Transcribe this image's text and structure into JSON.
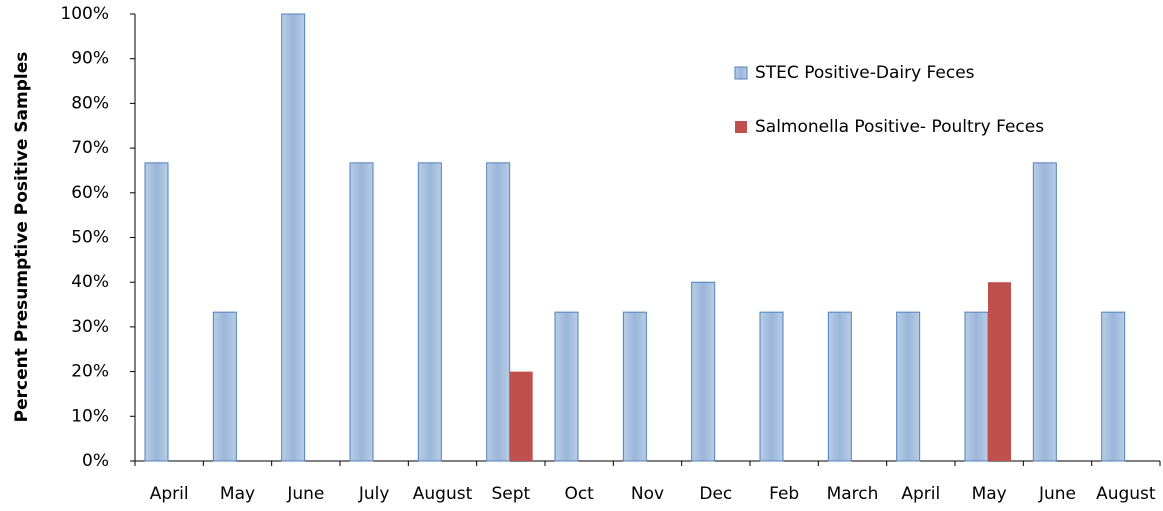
{
  "chart_data": {
    "type": "bar",
    "y_label": "Percent Presumptive Positive Samples",
    "categories": [
      "April",
      "May",
      "June",
      "July",
      "August",
      "Sept",
      "Oct",
      "Nov",
      "Dec",
      "Feb",
      "March",
      "April",
      "May",
      "June",
      "August"
    ],
    "series": [
      {
        "name": "STEC Positive-Dairy Feces",
        "color": "#95b3d7",
        "values": [
          66.7,
          33.3,
          100,
          66.7,
          66.7,
          66.7,
          33.3,
          33.3,
          40,
          33.3,
          33.3,
          33.3,
          33.3,
          66.7,
          33.3
        ]
      },
      {
        "name": "Salmonella Positive- Poultry Feces",
        "color": "#c0504d",
        "values": [
          null,
          null,
          null,
          null,
          null,
          20,
          null,
          null,
          null,
          null,
          null,
          null,
          40,
          null,
          null
        ]
      }
    ],
    "ylim": [
      0,
      100
    ],
    "yticks": [
      {
        "value": 0,
        "label": "0%"
      },
      {
        "value": 10,
        "label": "10%"
      },
      {
        "value": 20,
        "label": "20%"
      },
      {
        "value": 30,
        "label": "30%"
      },
      {
        "value": 40,
        "label": "40%"
      },
      {
        "value": 50,
        "label": "50%"
      },
      {
        "value": 60,
        "label": "60%"
      },
      {
        "value": 70,
        "label": "70%"
      },
      {
        "value": 80,
        "label": "80%"
      },
      {
        "value": 90,
        "label": "90%"
      },
      {
        "value": 100,
        "label": "100%"
      }
    ],
    "legend": "top-right"
  }
}
